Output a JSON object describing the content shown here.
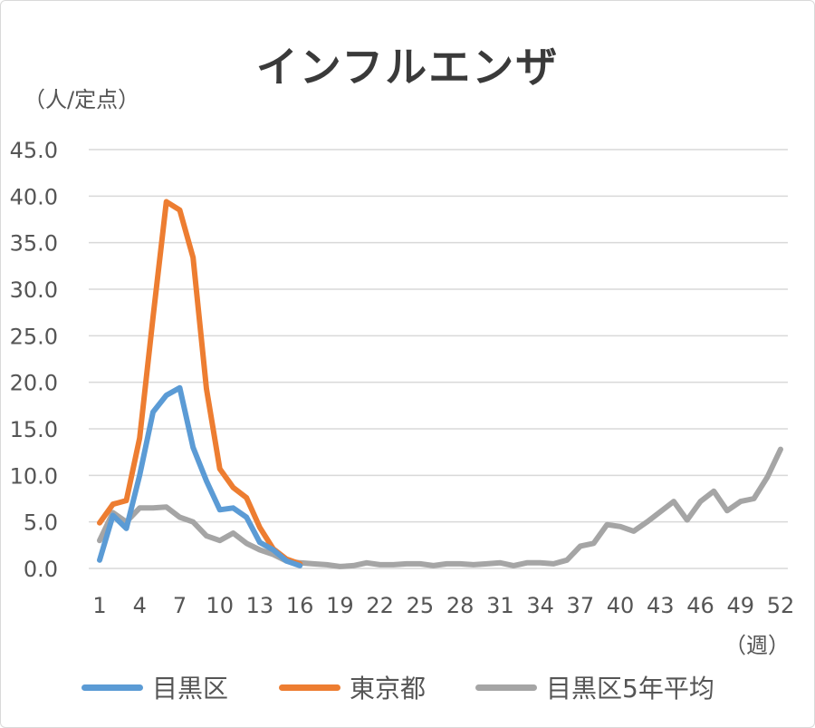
{
  "chart_data": {
    "type": "line",
    "title": "インフルエンザ",
    "ylabel": "（人/定点）",
    "xlabel": "（週）",
    "ylim": [
      0,
      45
    ],
    "yticks": [
      "0.0",
      "5.0",
      "10.0",
      "15.0",
      "20.0",
      "25.0",
      "30.0",
      "35.0",
      "40.0",
      "45.0"
    ],
    "xticks": [
      "1",
      "4",
      "7",
      "10",
      "13",
      "16",
      "19",
      "22",
      "25",
      "28",
      "31",
      "34",
      "37",
      "40",
      "43",
      "46",
      "49",
      "52"
    ],
    "legend_position": "bottom",
    "series": [
      {
        "name": "目黒区",
        "color": "#5b9bd5",
        "values": [
          0.9,
          5.7,
          4.3,
          10.0,
          16.8,
          18.6,
          19.4,
          13.0,
          9.4,
          6.3,
          6.5,
          5.5,
          2.8,
          2.0,
          0.8,
          0.3
        ]
      },
      {
        "name": "東京都",
        "color": "#ed7d31",
        "values": [
          4.9,
          6.9,
          7.3,
          14.0,
          27.0,
          39.4,
          38.5,
          33.4,
          19.3,
          10.7,
          8.7,
          7.6,
          4.4,
          2.1,
          1.0,
          0.5
        ]
      },
      {
        "name": "目黒区5年平均",
        "color": "#a5a5a5",
        "values": [
          3.0,
          6.0,
          5.0,
          6.5,
          6.5,
          6.6,
          5.5,
          5.0,
          3.5,
          3.0,
          3.8,
          2.7,
          2.0,
          1.5,
          0.8,
          0.6,
          0.5,
          0.4,
          0.2,
          0.3,
          0.6,
          0.4,
          0.4,
          0.5,
          0.5,
          0.3,
          0.5,
          0.5,
          0.4,
          0.5,
          0.6,
          0.3,
          0.6,
          0.6,
          0.5,
          0.9,
          2.4,
          2.7,
          4.7,
          4.5,
          4.0,
          5.0,
          6.1,
          7.2,
          5.2,
          7.2,
          8.3,
          6.2,
          7.2,
          7.5,
          9.8,
          12.8
        ]
      }
    ]
  }
}
